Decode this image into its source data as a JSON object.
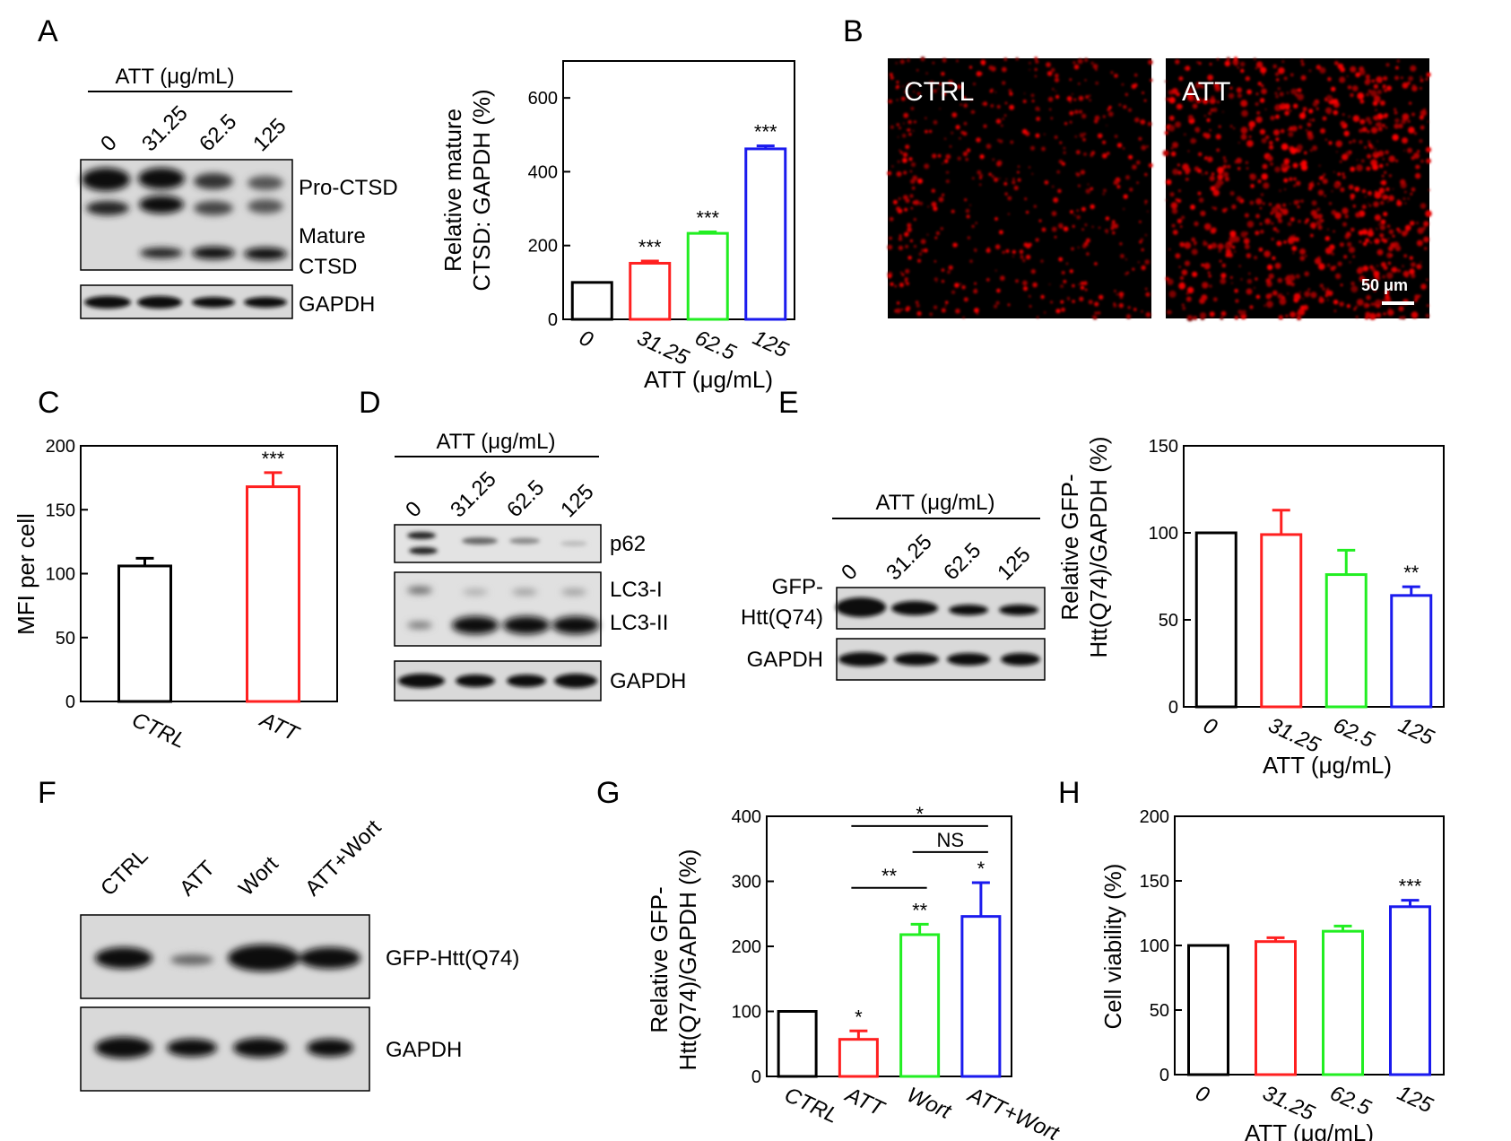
{
  "panels": {
    "A": "A",
    "B": "B",
    "C": "C",
    "D": "D",
    "E": "E",
    "F": "F",
    "G": "G",
    "H": "H"
  },
  "colors": {
    "black": "#000000",
    "red": "#ff2020",
    "green": "#22ee22",
    "blue": "#1a1aee"
  },
  "blots": {
    "A": {
      "header": "ATT (μg/mL)",
      "lanes": [
        "0",
        "31.25",
        "62.5",
        "125"
      ],
      "labels": [
        "Pro-CTSD",
        "Mature",
        "CTSD",
        "GAPDH"
      ]
    },
    "D": {
      "header": "ATT (μg/mL)",
      "lanes": [
        "0",
        "31.25",
        "62.5",
        "125"
      ],
      "labels": [
        "p62",
        "LC3-I",
        "LC3-II",
        "GAPDH"
      ]
    },
    "E": {
      "header": "ATT (μg/mL)",
      "lanes": [
        "0",
        "31.25",
        "62.5",
        "125"
      ],
      "labels": [
        "GFP-",
        "Htt(Q74)",
        "GAPDH"
      ]
    },
    "F": {
      "lanes": [
        "CTRL",
        "ATT",
        "Wort",
        "ATT+Wort"
      ],
      "labels": [
        "GFP-Htt(Q74)",
        "GAPDH"
      ]
    }
  },
  "micrograph": {
    "left_label": "CTRL",
    "right_label": "ATT",
    "scale_bar": "50 μm"
  },
  "chart_data": [
    {
      "panel": "A",
      "type": "bar",
      "categories": [
        "0",
        "31.25",
        "62.5",
        "125"
      ],
      "values": [
        100,
        152,
        233,
        462
      ],
      "errors": [
        0,
        6,
        4,
        8
      ],
      "significance": [
        "",
        "***",
        "***",
        "***"
      ],
      "ylim": [
        0,
        700
      ],
      "yticks": [
        0,
        200,
        400,
        600
      ],
      "ylabel": [
        "Relative mature",
        "CTSD: GAPDH (%)"
      ],
      "xlabel": "ATT (μg/mL)",
      "colors": [
        "#000000",
        "#ff2020",
        "#22ee22",
        "#1a1aee"
      ]
    },
    {
      "panel": "C",
      "type": "bar",
      "categories": [
        "CTRL",
        "ATT"
      ],
      "values": [
        106,
        168
      ],
      "errors": [
        6,
        11
      ],
      "significance": [
        "",
        "***"
      ],
      "ylim": [
        0,
        200
      ],
      "yticks": [
        0,
        50,
        100,
        150,
        200
      ],
      "ylabel": [
        "MFI per cell"
      ],
      "xlabel": "",
      "colors": [
        "#000000",
        "#ff2020"
      ]
    },
    {
      "panel": "E",
      "type": "bar",
      "categories": [
        "0",
        "31.25",
        "62.5",
        "125"
      ],
      "values": [
        100,
        99,
        76,
        64
      ],
      "errors": [
        0,
        14,
        14,
        5
      ],
      "significance": [
        "",
        "",
        "",
        "**"
      ],
      "ylim": [
        0,
        150
      ],
      "yticks": [
        0,
        50,
        100,
        150
      ],
      "ylabel": [
        "Relative GFP-",
        "Htt(Q74)/GAPDH (%)"
      ],
      "xlabel": "ATT (μg/mL)",
      "colors": [
        "#000000",
        "#ff2020",
        "#22ee22",
        "#1a1aee"
      ]
    },
    {
      "panel": "G",
      "type": "bar",
      "categories": [
        "CTRL",
        "ATT",
        "Wort",
        "ATT+Wort"
      ],
      "values": [
        100,
        57,
        218,
        246
      ],
      "errors": [
        0,
        13,
        16,
        52
      ],
      "significance": [
        "",
        "*",
        "**",
        "*"
      ],
      "ylim": [
        0,
        400
      ],
      "yticks": [
        0,
        100,
        200,
        300,
        400
      ],
      "ylabel": [
        "Relative GFP-",
        "Htt(Q74)/GAPDH (%)"
      ],
      "xlabel": "",
      "colors": [
        "#000000",
        "#ff2020",
        "#22ee22",
        "#1a1aee"
      ],
      "comparisons": [
        {
          "from": 1,
          "to": 3,
          "label": "*"
        },
        {
          "from": 2,
          "to": 3,
          "label": "NS"
        },
        {
          "from": 1,
          "to": 2,
          "label": "**"
        }
      ]
    },
    {
      "panel": "H",
      "type": "bar",
      "categories": [
        "0",
        "31.25",
        "62.5",
        "125"
      ],
      "values": [
        100,
        103,
        111,
        130
      ],
      "errors": [
        0,
        3,
        4,
        5
      ],
      "significance": [
        "",
        "",
        "",
        "***"
      ],
      "ylim": [
        0,
        200
      ],
      "yticks": [
        0,
        50,
        100,
        150,
        200
      ],
      "ylabel": [
        "Cell viability (%)"
      ],
      "xlabel": "ATT (μg/mL)",
      "colors": [
        "#000000",
        "#ff2020",
        "#22ee22",
        "#1a1aee"
      ]
    }
  ]
}
